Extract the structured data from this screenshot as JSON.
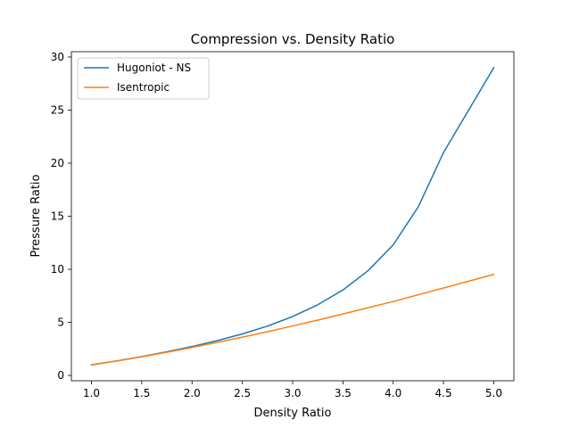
{
  "chart_data": {
    "type": "line",
    "title": "Compression vs. Density Ratio",
    "xlabel": "Density Ratio",
    "ylabel": "Pressure Ratio",
    "xlim": [
      0.8,
      5.2
    ],
    "ylim": [
      -0.5,
      30.5
    ],
    "xticks": [
      1.0,
      1.5,
      2.0,
      2.5,
      3.0,
      3.5,
      4.0,
      4.5,
      5.0
    ],
    "xtick_labels": [
      "1.0",
      "1.5",
      "2.0",
      "2.5",
      "3.0",
      "3.5",
      "4.0",
      "4.5",
      "5.0"
    ],
    "yticks": [
      0,
      5,
      10,
      15,
      20,
      25,
      30
    ],
    "ytick_labels": [
      "0",
      "5",
      "10",
      "15",
      "20",
      "25",
      "30"
    ],
    "grid": false,
    "legend_position": "top-left",
    "series": [
      {
        "name": "Hugoniot - NS",
        "color": "#1f77b4",
        "x": [
          1.0,
          1.25,
          1.5,
          1.75,
          2.0,
          2.25,
          2.5,
          2.75,
          3.0,
          3.25,
          3.5,
          3.75,
          4.0,
          4.25,
          4.5,
          4.75,
          5.0
        ],
        "y": [
          1.0,
          1.36,
          1.78,
          2.23,
          2.72,
          3.28,
          3.91,
          4.65,
          5.55,
          6.66,
          8.05,
          9.87,
          12.3,
          15.9,
          21.0,
          25.0,
          29.0
        ]
      },
      {
        "name": "Isentropic",
        "color": "#ff7f0e",
        "x": [
          1.0,
          1.25,
          1.5,
          1.75,
          2.0,
          2.25,
          2.5,
          2.75,
          3.0,
          3.25,
          3.5,
          3.75,
          4.0,
          4.25,
          4.5,
          4.75,
          5.0
        ],
        "y": [
          1.0,
          1.37,
          1.76,
          2.19,
          2.64,
          3.11,
          3.61,
          4.12,
          4.66,
          5.21,
          5.79,
          6.38,
          6.96,
          7.6,
          8.24,
          8.88,
          9.52
        ]
      }
    ]
  }
}
